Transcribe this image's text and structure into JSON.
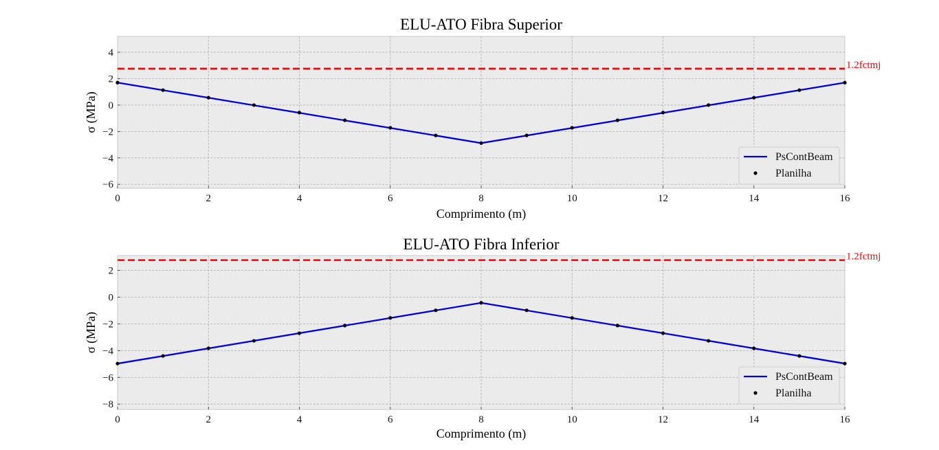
{
  "chart_data": [
    {
      "type": "line",
      "title": "ELU-ATO Fibra Superior",
      "xlabel": "Comprimento (m)",
      "ylabel": "σ (MPa)",
      "xlim": [
        0,
        16
      ],
      "ylim": [
        -6.3,
        5.2
      ],
      "xticks": [
        0,
        2,
        4,
        6,
        8,
        10,
        12,
        14,
        16
      ],
      "yticks": [
        -6,
        -4,
        -2,
        0,
        2,
        4
      ],
      "grid": true,
      "legend_position": "lower right",
      "reference_line": {
        "label": "1.2fctmj",
        "value": 2.76,
        "color": "#ff0000"
      },
      "series": [
        {
          "name": "PsContBeam",
          "style": "line",
          "color": "#0000dd",
          "x": [
            0,
            8,
            16
          ],
          "y": [
            1.7,
            -2.88,
            1.7
          ]
        },
        {
          "name": "Planilha",
          "style": "points",
          "color": "#000000",
          "x": [
            0,
            1,
            2,
            3,
            4,
            5,
            6,
            7,
            8,
            9,
            10,
            11,
            12,
            13,
            14,
            15,
            16
          ],
          "y": [
            1.7,
            1.13,
            0.56,
            0.0,
            -0.57,
            -1.15,
            -1.72,
            -2.3,
            -2.88,
            -2.3,
            -1.72,
            -1.15,
            -0.57,
            0.0,
            0.56,
            1.13,
            1.7
          ]
        }
      ]
    },
    {
      "type": "line",
      "title": "ELU-ATO Fibra Inferior",
      "xlabel": "Comprimento (m)",
      "ylabel": "σ (MPa)",
      "xlim": [
        0,
        16
      ],
      "ylim": [
        -8.4,
        3.1
      ],
      "xticks": [
        0,
        2,
        4,
        6,
        8,
        10,
        12,
        14,
        16
      ],
      "yticks": [
        -8,
        -6,
        -4,
        -2,
        0,
        2
      ],
      "grid": true,
      "legend_position": "lower right",
      "reference_line": {
        "label": "1.2fctmj",
        "value": 2.76,
        "color": "#ff0000"
      },
      "series": [
        {
          "name": "PsContBeam",
          "style": "line",
          "color": "#0000dd",
          "x": [
            0,
            8,
            16
          ],
          "y": [
            -4.97,
            -0.43,
            -4.97
          ]
        },
        {
          "name": "Planilha",
          "style": "points",
          "color": "#000000",
          "x": [
            0,
            1,
            2,
            3,
            4,
            5,
            6,
            7,
            8,
            9,
            10,
            11,
            12,
            13,
            14,
            15,
            16
          ],
          "y": [
            -4.97,
            -4.4,
            -3.83,
            -3.27,
            -2.7,
            -2.13,
            -1.56,
            -0.99,
            -0.43,
            -0.99,
            -1.56,
            -2.13,
            -2.7,
            -3.27,
            -3.83,
            -4.4,
            -4.97
          ]
        }
      ]
    }
  ]
}
